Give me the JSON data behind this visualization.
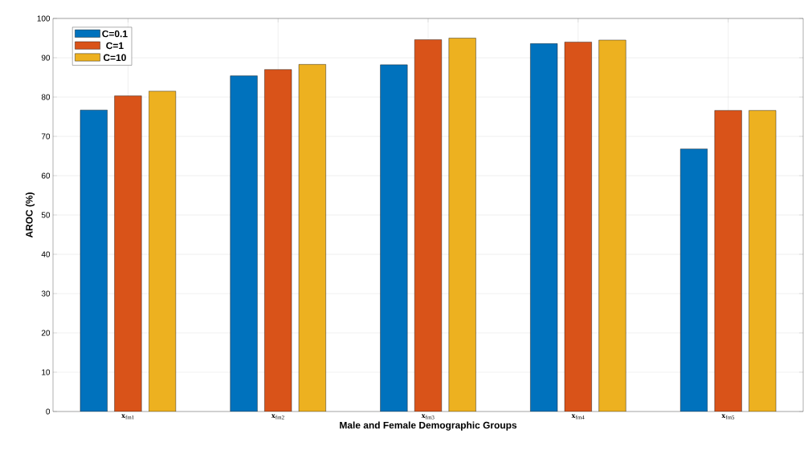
{
  "chart_data": {
    "type": "bar",
    "xlabel": "Male and Female Demographic Groups",
    "ylabel": "AROC (%)",
    "categories": [
      "**x**$_{fm1}$",
      "**x**$_{fm2}$",
      "**x**$_{fm3}$",
      "**x**$_{fm4}$",
      "**x**$_{fm5}$"
    ],
    "series": [
      {
        "name": "C=0.1",
        "color": "#0072bd",
        "values": [
          76.7,
          85.4,
          88.2,
          93.6,
          66.8
        ]
      },
      {
        "name": "C=1",
        "color": "#d95319",
        "values": [
          80.3,
          87.0,
          94.6,
          94.0,
          76.6
        ]
      },
      {
        "name": "C=10",
        "color": "#edb120",
        "values": [
          81.5,
          88.3,
          95.0,
          94.5,
          76.6
        ]
      }
    ],
    "ylim": [
      0,
      100
    ],
    "yticks": [
      0,
      10,
      20,
      30,
      40,
      50,
      60,
      70,
      80,
      90,
      100
    ],
    "grid": true,
    "legend": "top left"
  }
}
